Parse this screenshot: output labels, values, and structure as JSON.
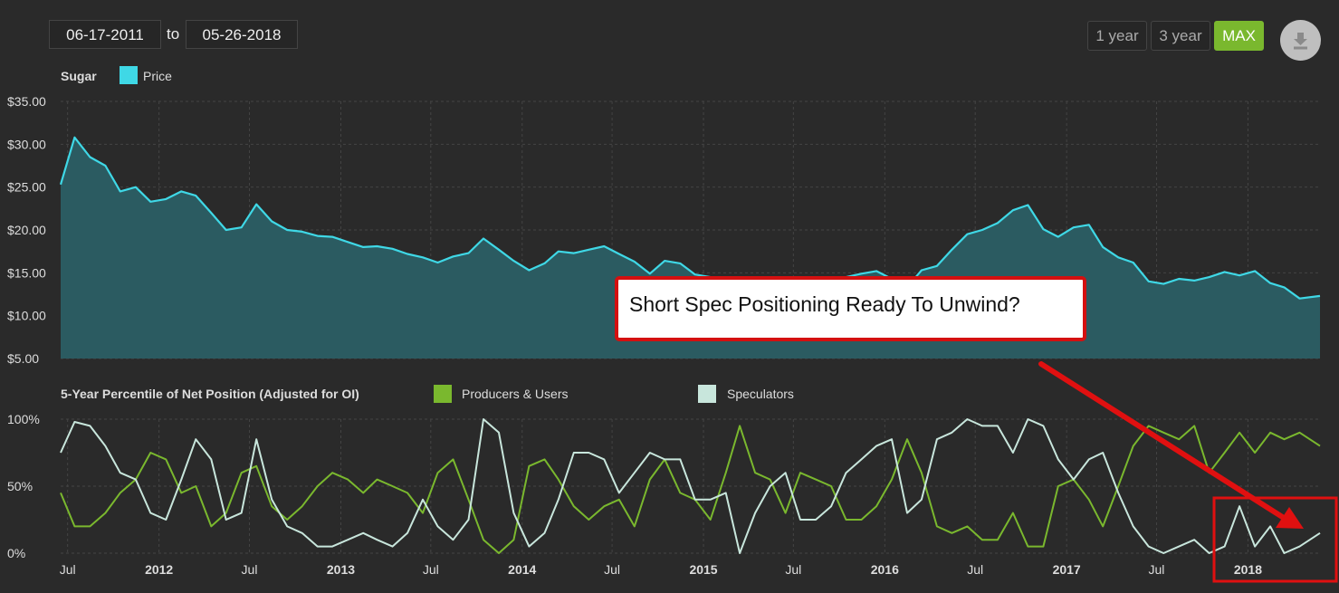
{
  "date_range": {
    "from": "06-17-2011",
    "to_label": "to",
    "to": "05-26-2018"
  },
  "range_buttons": {
    "one_year": "1 year",
    "three_year": "3 year",
    "max": "MAX"
  },
  "download_icon": "download-icon",
  "colors": {
    "background": "#2a2a2a",
    "price_line": "#3fd8e6",
    "price_fill": "#2b5b61",
    "producers": "#7ab82e",
    "speculators": "#c8e6dc",
    "grid": "#444444",
    "annotation_red": "#e01010"
  },
  "annotation": {
    "text": "Short Spec Positioning Ready To Unwind?"
  },
  "chart_data": [
    {
      "type": "area",
      "legend_label": "Sugar",
      "series": [
        {
          "name": "Price",
          "x": [
            "2011-06-17",
            "2011-07-15",
            "2011-08-15",
            "2011-09-15",
            "2011-10-15",
            "2011-11-15",
            "2011-12-15",
            "2012-01-15",
            "2012-02-15",
            "2012-03-15",
            "2012-04-15",
            "2012-05-15",
            "2012-06-15",
            "2012-07-15",
            "2012-08-15",
            "2012-09-15",
            "2012-10-15",
            "2012-11-15",
            "2012-12-15",
            "2013-01-15",
            "2013-02-15",
            "2013-03-15",
            "2013-04-15",
            "2013-05-15",
            "2013-06-15",
            "2013-07-15",
            "2013-08-15",
            "2013-09-15",
            "2013-10-15",
            "2013-11-15",
            "2013-12-15",
            "2014-01-15",
            "2014-02-15",
            "2014-03-15",
            "2014-04-15",
            "2014-05-15",
            "2014-06-15",
            "2014-07-15",
            "2014-08-15",
            "2014-09-15",
            "2014-10-15",
            "2014-11-15",
            "2014-12-15",
            "2015-01-15",
            "2015-02-15",
            "2015-03-15",
            "2015-04-15",
            "2015-05-15",
            "2015-06-15",
            "2015-07-15",
            "2015-08-15",
            "2015-09-15",
            "2015-10-15",
            "2015-11-15",
            "2015-12-15",
            "2016-01-15",
            "2016-02-15",
            "2016-03-15",
            "2016-04-15",
            "2016-05-15",
            "2016-06-15",
            "2016-07-15",
            "2016-08-15",
            "2016-09-15",
            "2016-10-15",
            "2016-11-15",
            "2016-12-15",
            "2017-01-15",
            "2017-02-15",
            "2017-03-15",
            "2017-04-15",
            "2017-05-15",
            "2017-06-15",
            "2017-07-15",
            "2017-08-15",
            "2017-09-15",
            "2017-10-15",
            "2017-11-15",
            "2017-12-15",
            "2018-01-15",
            "2018-02-15",
            "2018-03-15",
            "2018-04-15",
            "2018-05-26"
          ],
          "values": [
            25.3,
            30.8,
            28.5,
            27.5,
            24.5,
            25.0,
            23.3,
            23.6,
            24.5,
            24.0,
            22.0,
            20.0,
            20.3,
            23.0,
            21.0,
            20.0,
            19.8,
            19.3,
            19.2,
            18.6,
            18.0,
            18.1,
            17.8,
            17.2,
            16.8,
            16.2,
            16.9,
            17.3,
            19.0,
            17.7,
            16.4,
            15.3,
            16.1,
            17.5,
            17.3,
            17.7,
            18.1,
            17.2,
            16.3,
            14.9,
            16.4,
            16.1,
            14.8,
            14.5,
            14.2,
            12.6,
            12.8,
            12.6,
            11.8,
            11.8,
            10.8,
            11.5,
            14.5,
            14.9,
            15.2,
            14.3,
            13.3,
            15.3,
            15.8,
            17.7,
            19.5,
            20.0,
            20.8,
            22.3,
            22.9,
            20.1,
            19.2,
            20.3,
            20.6,
            18.0,
            16.8,
            16.2,
            14.0,
            13.7,
            14.3,
            14.1,
            14.5,
            15.1,
            14.7,
            15.2,
            13.8,
            13.3,
            12.0,
            12.3
          ]
        }
      ],
      "yticks": [
        "$35.00",
        "$30.00",
        "$25.00",
        "$20.00",
        "$15.00",
        "$10.00",
        "$5.00"
      ],
      "ylim": [
        5,
        35
      ]
    },
    {
      "type": "line",
      "title": "5-Year Percentile of Net Position (Adjusted for OI)",
      "series": [
        {
          "name": "Producers & Users",
          "x": [
            "2011-06-17",
            "2011-07-15",
            "2011-08-15",
            "2011-09-15",
            "2011-10-15",
            "2011-11-15",
            "2011-12-15",
            "2012-01-15",
            "2012-02-15",
            "2012-03-15",
            "2012-04-15",
            "2012-05-15",
            "2012-06-15",
            "2012-07-15",
            "2012-08-15",
            "2012-09-15",
            "2012-10-15",
            "2012-11-15",
            "2012-12-15",
            "2013-01-15",
            "2013-02-15",
            "2013-03-15",
            "2013-04-15",
            "2013-05-15",
            "2013-06-15",
            "2013-07-15",
            "2013-08-15",
            "2013-09-15",
            "2013-10-15",
            "2013-11-15",
            "2013-12-15",
            "2014-01-15",
            "2014-02-15",
            "2014-03-15",
            "2014-04-15",
            "2014-05-15",
            "2014-06-15",
            "2014-07-15",
            "2014-08-15",
            "2014-09-15",
            "2014-10-15",
            "2014-11-15",
            "2014-12-15",
            "2015-01-15",
            "2015-02-15",
            "2015-03-15",
            "2015-04-15",
            "2015-05-15",
            "2015-06-15",
            "2015-07-15",
            "2015-08-15",
            "2015-09-15",
            "2015-10-15",
            "2015-11-15",
            "2015-12-15",
            "2016-01-15",
            "2016-02-15",
            "2016-03-15",
            "2016-04-15",
            "2016-05-15",
            "2016-06-15",
            "2016-07-15",
            "2016-08-15",
            "2016-09-15",
            "2016-10-15",
            "2016-11-15",
            "2016-12-15",
            "2017-01-15",
            "2017-02-15",
            "2017-03-15",
            "2017-04-15",
            "2017-05-15",
            "2017-06-15",
            "2017-07-15",
            "2017-08-15",
            "2017-09-15",
            "2017-10-15",
            "2017-11-15",
            "2017-12-15",
            "2018-01-15",
            "2018-02-15",
            "2018-03-15",
            "2018-04-15",
            "2018-05-26"
          ],
          "values": [
            45,
            20,
            20,
            30,
            45,
            55,
            75,
            70,
            45,
            50,
            20,
            30,
            60,
            65,
            35,
            25,
            35,
            50,
            60,
            55,
            45,
            55,
            50,
            45,
            30,
            60,
            70,
            40,
            10,
            0,
            10,
            65,
            70,
            55,
            35,
            25,
            35,
            40,
            20,
            55,
            70,
            45,
            40,
            25,
            60,
            95,
            60,
            55,
            30,
            60,
            55,
            50,
            25,
            25,
            35,
            55,
            85,
            60,
            20,
            15,
            20,
            10,
            10,
            30,
            5,
            5,
            50,
            55,
            40,
            20,
            50,
            80,
            95,
            90,
            85,
            95,
            60,
            75,
            90,
            75,
            90,
            85,
            90,
            80
          ]
        },
        {
          "name": "Speculators",
          "x": [
            "2011-06-17",
            "2011-07-15",
            "2011-08-15",
            "2011-09-15",
            "2011-10-15",
            "2011-11-15",
            "2011-12-15",
            "2012-01-15",
            "2012-02-15",
            "2012-03-15",
            "2012-04-15",
            "2012-05-15",
            "2012-06-15",
            "2012-07-15",
            "2012-08-15",
            "2012-09-15",
            "2012-10-15",
            "2012-11-15",
            "2012-12-15",
            "2013-01-15",
            "2013-02-15",
            "2013-03-15",
            "2013-04-15",
            "2013-05-15",
            "2013-06-15",
            "2013-07-15",
            "2013-08-15",
            "2013-09-15",
            "2013-10-15",
            "2013-11-15",
            "2013-12-15",
            "2014-01-15",
            "2014-02-15",
            "2014-03-15",
            "2014-04-15",
            "2014-05-15",
            "2014-06-15",
            "2014-07-15",
            "2014-08-15",
            "2014-09-15",
            "2014-10-15",
            "2014-11-15",
            "2014-12-15",
            "2015-01-15",
            "2015-02-15",
            "2015-03-15",
            "2015-04-15",
            "2015-05-15",
            "2015-06-15",
            "2015-07-15",
            "2015-08-15",
            "2015-09-15",
            "2015-10-15",
            "2015-11-15",
            "2015-12-15",
            "2016-01-15",
            "2016-02-15",
            "2016-03-15",
            "2016-04-15",
            "2016-05-15",
            "2016-06-15",
            "2016-07-15",
            "2016-08-15",
            "2016-09-15",
            "2016-10-15",
            "2016-11-15",
            "2016-12-15",
            "2017-01-15",
            "2017-02-15",
            "2017-03-15",
            "2017-04-15",
            "2017-05-15",
            "2017-06-15",
            "2017-07-15",
            "2017-08-15",
            "2017-09-15",
            "2017-10-15",
            "2017-11-15",
            "2017-12-15",
            "2018-01-15",
            "2018-02-15",
            "2018-03-15",
            "2018-04-15",
            "2018-05-26"
          ],
          "values": [
            75,
            98,
            95,
            80,
            60,
            55,
            30,
            25,
            55,
            85,
            70,
            25,
            30,
            85,
            40,
            20,
            15,
            5,
            5,
            10,
            15,
            10,
            5,
            15,
            40,
            20,
            10,
            25,
            100,
            90,
            30,
            5,
            15,
            40,
            75,
            75,
            70,
            45,
            60,
            75,
            70,
            70,
            40,
            40,
            45,
            0,
            30,
            50,
            60,
            25,
            25,
            35,
            60,
            70,
            80,
            85,
            30,
            40,
            85,
            90,
            100,
            95,
            95,
            75,
            100,
            95,
            70,
            55,
            70,
            75,
            45,
            20,
            5,
            0,
            5,
            10,
            0,
            5,
            35,
            5,
            20,
            0,
            5,
            15
          ]
        }
      ],
      "xticks": [
        "Jul",
        "2012",
        "Jul",
        "2013",
        "Jul",
        "2014",
        "Jul",
        "2015",
        "Jul",
        "2016",
        "Jul",
        "2017",
        "Jul",
        "2018"
      ],
      "yticks": [
        "100%",
        "50%",
        "0%"
      ],
      "ylim": [
        0,
        100
      ]
    }
  ]
}
